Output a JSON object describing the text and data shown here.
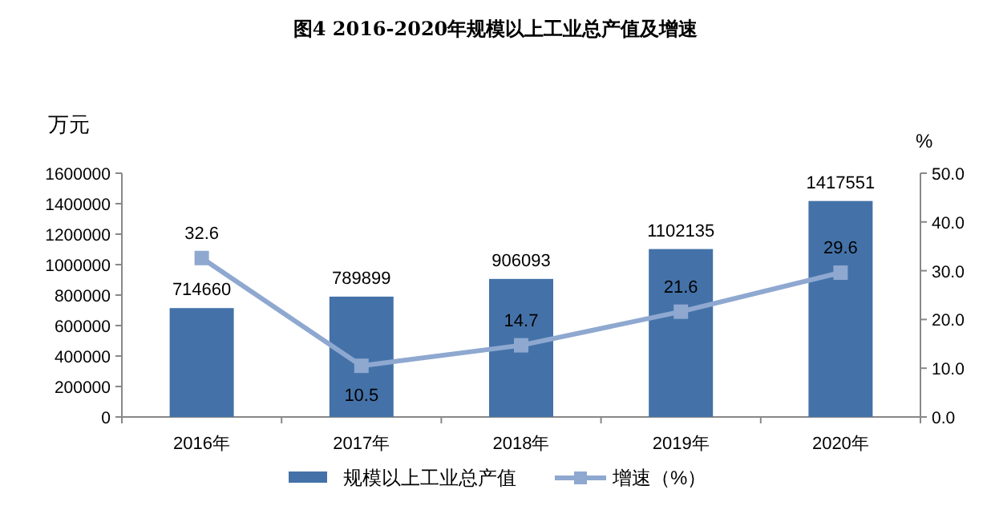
{
  "chart_data": {
    "type": "bar",
    "title": "图4 2016-2020年规模以上工业总产值及增速",
    "ylabel": "万元",
    "y2label": "%",
    "categories": [
      "2016年",
      "2017年",
      "2018年",
      "2019年",
      "2020年"
    ],
    "series": [
      {
        "name": "规模以上工业总产值",
        "color": "#4472a8",
        "values": [
          714660,
          789899,
          906093,
          1102135,
          1417551
        ]
      },
      {
        "name": "增速（%）",
        "type": "line",
        "axis": "y2",
        "color": "#8ea8d0",
        "marker": "square",
        "values": [
          32.6,
          10.5,
          14.7,
          21.6,
          29.6
        ]
      }
    ],
    "ylim": [
      0,
      1600000
    ],
    "yticks": [
      0,
      200000,
      400000,
      600000,
      800000,
      1000000,
      1200000,
      1400000,
      1600000
    ],
    "y2lim": [
      0,
      50
    ],
    "y2ticks": [
      {
        "value": 0,
        "label": "0.0"
      },
      {
        "value": 10,
        "label": "10.0"
      },
      {
        "value": 20,
        "label": "20.0"
      },
      {
        "value": 30,
        "label": "30.0"
      },
      {
        "value": 40,
        "label": "40.0"
      },
      {
        "value": 50,
        "label": "50.0"
      }
    ],
    "data_labels": true,
    "grid": false,
    "legend": "bottom"
  }
}
